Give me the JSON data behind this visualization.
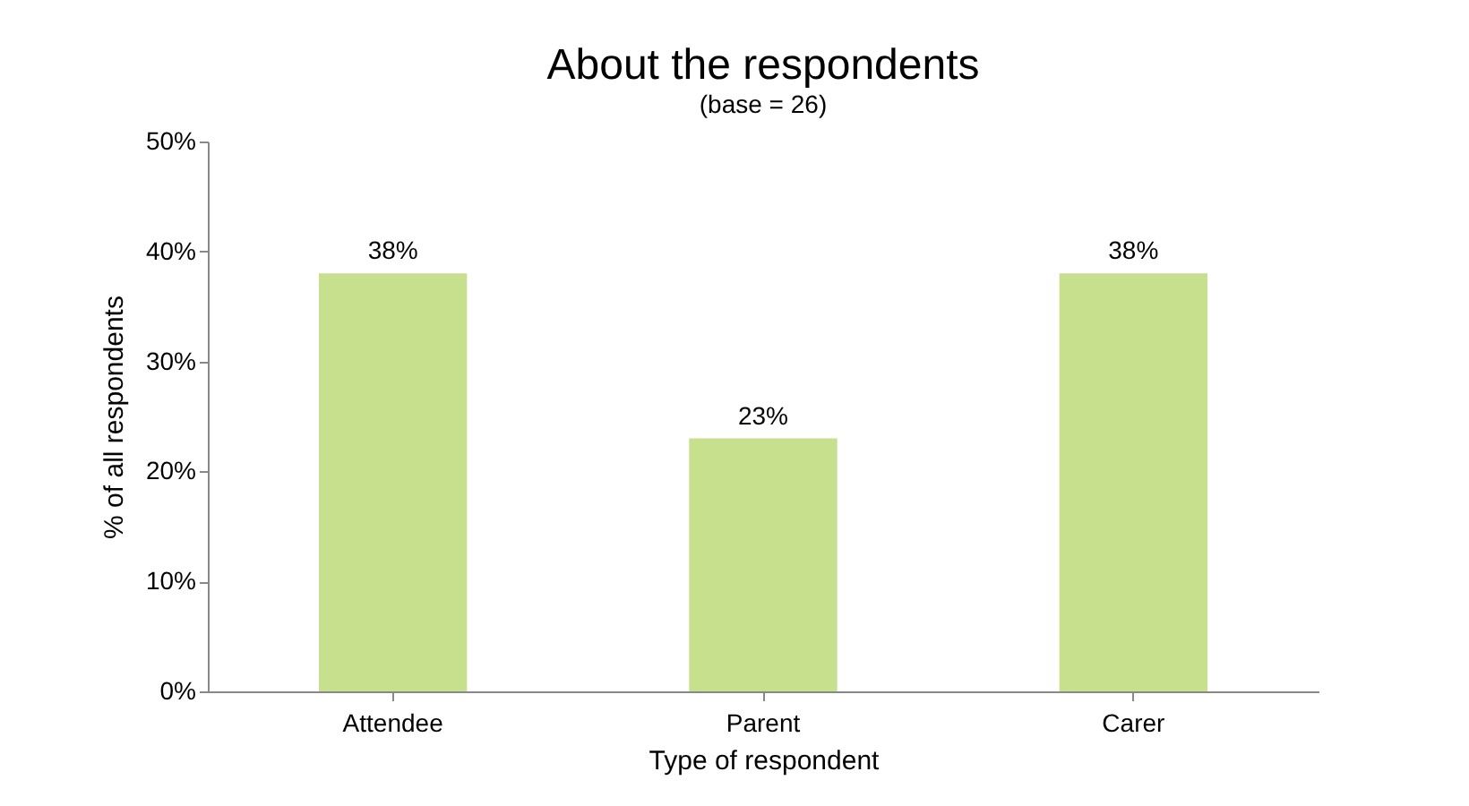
{
  "chart_data": {
    "type": "bar",
    "title": "About the respondents",
    "subtitle": "(base = 26)",
    "xlabel": "Type of respondent",
    "ylabel": "% of all respondents",
    "categories": [
      "Attendee",
      "Parent",
      "Carer"
    ],
    "values": [
      38,
      23,
      38
    ],
    "value_labels": [
      "38%",
      "23%",
      "38%"
    ],
    "color": "#c6e08e",
    "ylim": [
      0,
      50
    ],
    "yticks": [
      {
        "value": 0,
        "label": "0%"
      },
      {
        "value": 10,
        "label": "10%"
      },
      {
        "value": 20,
        "label": "20%"
      },
      {
        "value": 30,
        "label": "30%"
      },
      {
        "value": 40,
        "label": "40%"
      },
      {
        "value": 50,
        "label": "50%"
      }
    ],
    "grid": false
  }
}
